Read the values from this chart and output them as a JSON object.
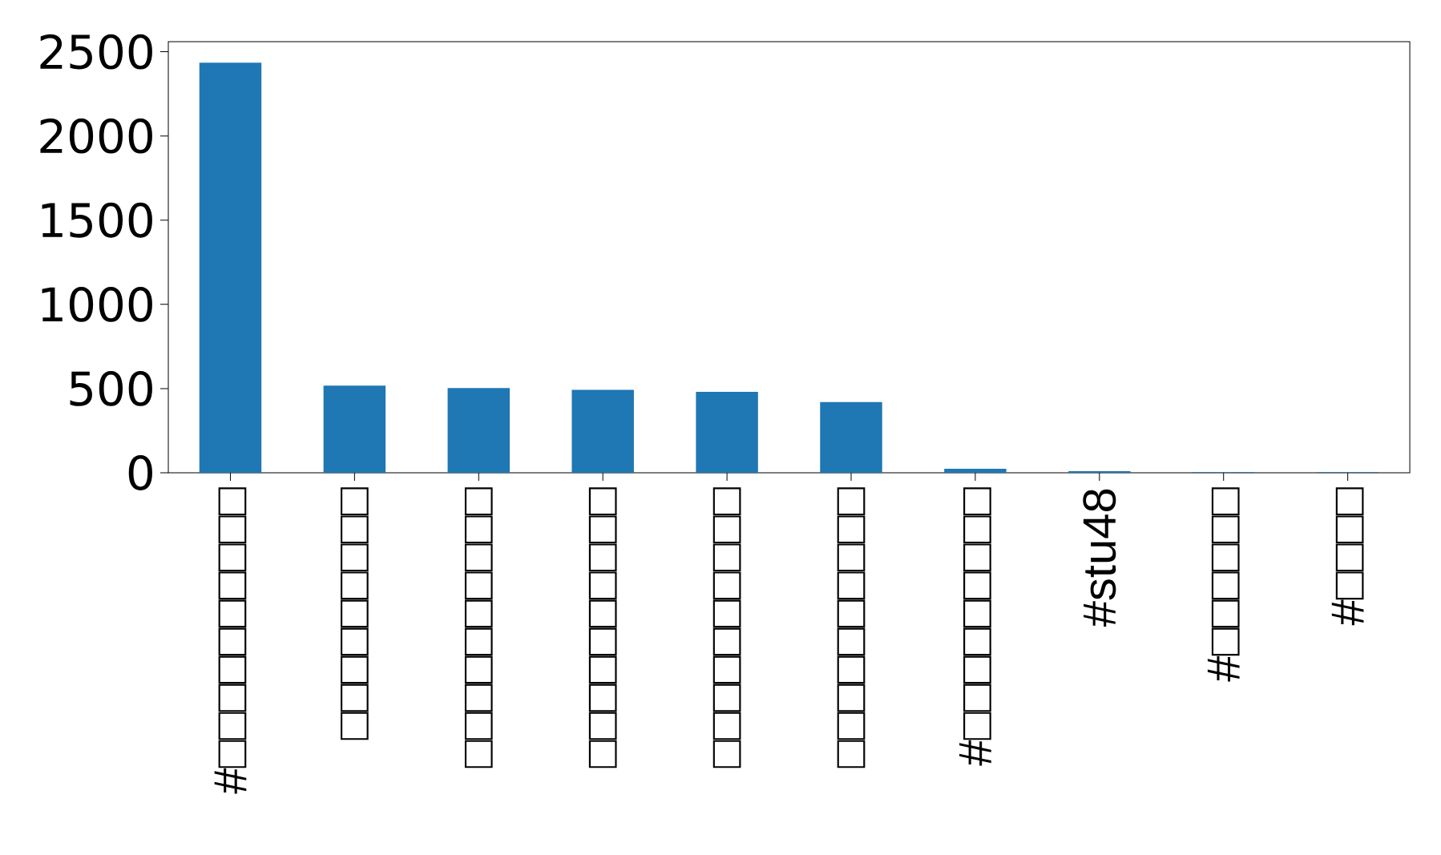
{
  "chart_data": {
    "type": "bar",
    "categories": [
      "#□□□□□□□□□□",
      "□□□□□□□□□",
      "□□□□□□□□□□",
      "□□□□□□□□□□",
      "□□□□□□□□□□",
      "□□□□□□□□□□",
      "#□□□□□□□□□",
      "#stu48",
      "#□□□□□□",
      "#□□□□"
    ],
    "values": [
      2435,
      517,
      503,
      492,
      480,
      420,
      24,
      10,
      4,
      4
    ],
    "color": "#1f77b4",
    "ylim": [
      0,
      2560
    ],
    "yticks": [
      0,
      500,
      1000,
      1500,
      2000,
      2500
    ],
    "grid": false
  }
}
